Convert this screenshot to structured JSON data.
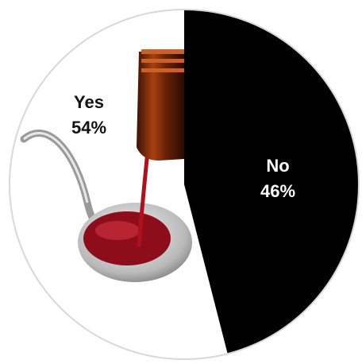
{
  "chart_data": {
    "type": "pie",
    "categories": [
      "Yes",
      "No"
    ],
    "values": [
      54,
      46
    ],
    "value_labels": [
      "54%",
      "46%"
    ],
    "colors": [
      "#ffffff",
      "#000000"
    ],
    "label_colors": [
      "#111111",
      "#ffffff"
    ]
  }
}
